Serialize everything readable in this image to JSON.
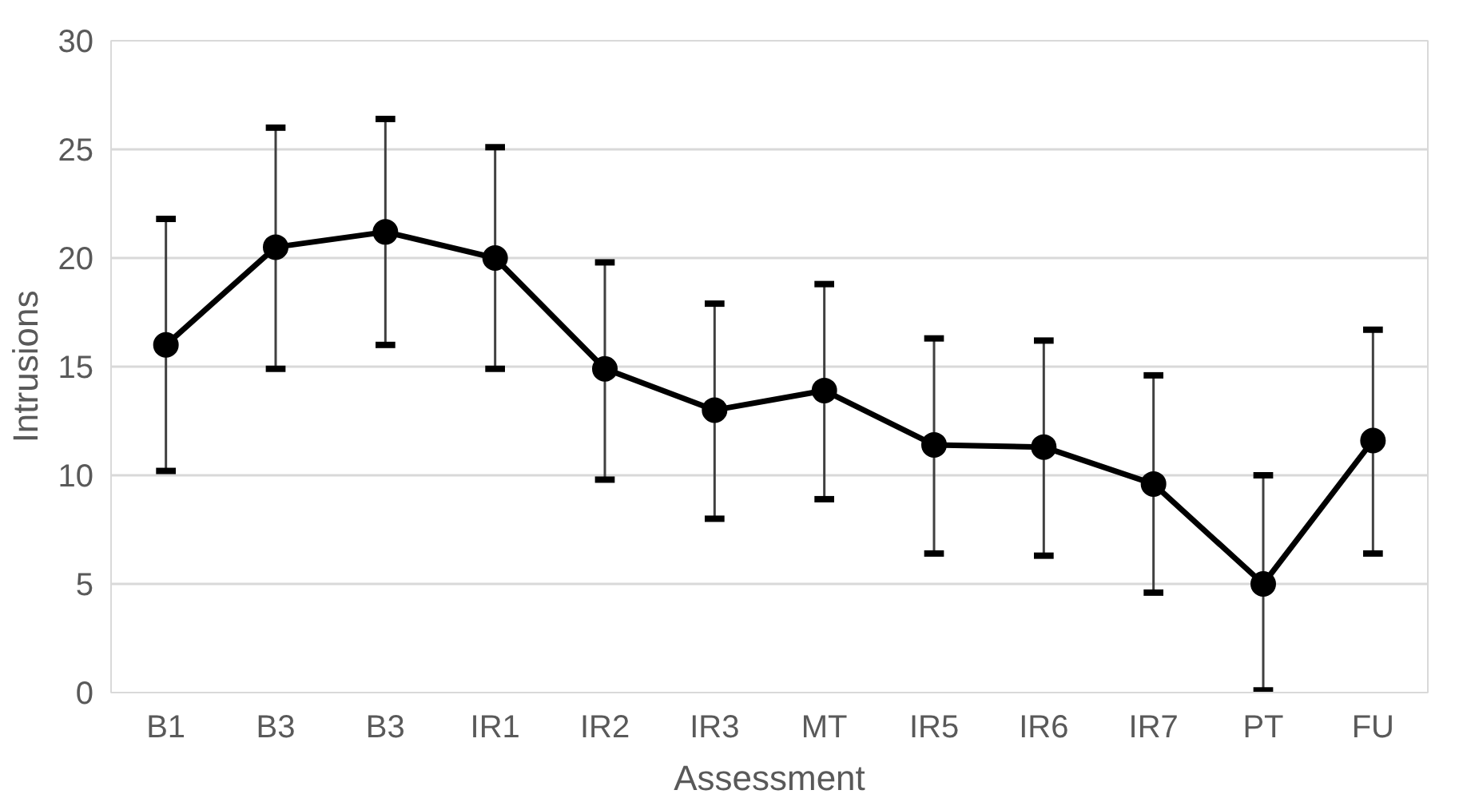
{
  "chart_data": {
    "type": "line",
    "xlabel": "Assessment",
    "ylabel": "Intrusions",
    "categories": [
      "B1",
      "B3",
      "B3",
      "IR1",
      "IR2",
      "IR3",
      "MT",
      "IR5",
      "IR6",
      "IR7",
      "PT",
      "FU"
    ],
    "values": [
      16.0,
      20.5,
      21.2,
      20.0,
      14.9,
      13.0,
      13.9,
      11.4,
      11.3,
      9.6,
      5.0,
      11.6
    ],
    "errors": [
      [
        10.2,
        21.8
      ],
      [
        14.9,
        26.0
      ],
      [
        16.0,
        26.4
      ],
      [
        14.9,
        25.1
      ],
      [
        9.8,
        19.8
      ],
      [
        8.0,
        17.9
      ],
      [
        8.9,
        18.8
      ],
      [
        6.4,
        16.3
      ],
      [
        6.3,
        16.2
      ],
      [
        4.6,
        14.6
      ],
      [
        0.1,
        10.0
      ],
      [
        6.4,
        16.7
      ]
    ],
    "color": "#000000",
    "marker": "circle",
    "line_style": "solid",
    "ylim": [
      0,
      30
    ],
    "yticks": [
      0,
      5,
      10,
      15,
      20,
      25,
      30
    ],
    "grid": "y"
  }
}
